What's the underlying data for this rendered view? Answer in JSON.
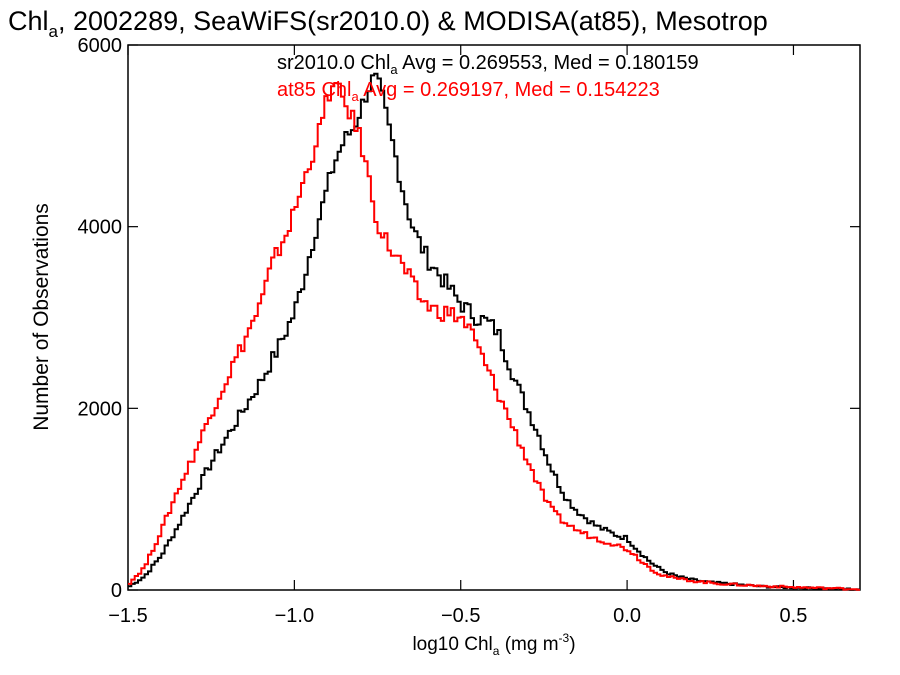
{
  "chart_data": {
    "type": "line",
    "title_parts": {
      "a": "Chl",
      "sub": "a",
      "b": ", 2002289, SeaWiFS(sr2010.0) & MODISA(at85), Mesotrop"
    },
    "xlabel_parts": {
      "a": "log10 Chl",
      "sub": "a",
      "b": " (mg m",
      "sup": "-3",
      "c": ")"
    },
    "ylabel": "Number of Observations",
    "xlim": [
      -1.5,
      0.7
    ],
    "ylim": [
      0,
      6000
    ],
    "x_ticks": [
      {
        "v": -1.5,
        "label": "−1.5"
      },
      {
        "v": -1.0,
        "label": "−1.0"
      },
      {
        "v": -0.5,
        "label": "−0.5"
      },
      {
        "v": 0.0,
        "label": "0.0"
      },
      {
        "v": 0.5,
        "label": "0.5"
      }
    ],
    "y_ticks": [
      {
        "v": 0,
        "label": "0"
      },
      {
        "v": 2000,
        "label": "2000"
      },
      {
        "v": 4000,
        "label": "4000"
      },
      {
        "v": 6000,
        "label": "6000"
      }
    ],
    "series": [
      {
        "color": "#000000",
        "annotation": {
          "a": "sr2010.0 Chl",
          "sub": "a",
          "b": " Avg = 0.269553, Med = 0.180159"
        },
        "points": [
          [
            -1.5,
            30
          ],
          [
            -1.45,
            150
          ],
          [
            -1.4,
            380
          ],
          [
            -1.35,
            700
          ],
          [
            -1.3,
            1050
          ],
          [
            -1.25,
            1400
          ],
          [
            -1.2,
            1700
          ],
          [
            -1.15,
            2000
          ],
          [
            -1.1,
            2300
          ],
          [
            -1.05,
            2650
          ],
          [
            -1.0,
            3050
          ],
          [
            -0.97,
            3450
          ],
          [
            -0.94,
            3900
          ],
          [
            -0.91,
            4300
          ],
          [
            -0.88,
            4700
          ],
          [
            -0.85,
            4950
          ],
          [
            -0.82,
            5100
          ],
          [
            -0.8,
            5300
          ],
          [
            -0.78,
            5500
          ],
          [
            -0.76,
            5650
          ],
          [
            -0.74,
            5500
          ],
          [
            -0.72,
            5150
          ],
          [
            -0.7,
            4850
          ],
          [
            -0.68,
            4500
          ],
          [
            -0.66,
            4200
          ],
          [
            -0.64,
            3950
          ],
          [
            -0.62,
            3800
          ],
          [
            -0.6,
            3650
          ],
          [
            -0.57,
            3500
          ],
          [
            -0.54,
            3350
          ],
          [
            -0.51,
            3200
          ],
          [
            -0.48,
            3080
          ],
          [
            -0.45,
            3000
          ],
          [
            -0.42,
            2950
          ],
          [
            -0.39,
            2850
          ],
          [
            -0.36,
            2550
          ],
          [
            -0.33,
            2250
          ],
          [
            -0.3,
            2000
          ],
          [
            -0.27,
            1750
          ],
          [
            -0.24,
            1450
          ],
          [
            -0.21,
            1200
          ],
          [
            -0.18,
            1000
          ],
          [
            -0.15,
            870
          ],
          [
            -0.12,
            780
          ],
          [
            -0.09,
            700
          ],
          [
            -0.06,
            650
          ],
          [
            -0.03,
            600
          ],
          [
            0.0,
            570
          ],
          [
            0.03,
            450
          ],
          [
            0.06,
            340
          ],
          [
            0.09,
            250
          ],
          [
            0.12,
            190
          ],
          [
            0.15,
            150
          ],
          [
            0.2,
            110
          ],
          [
            0.25,
            85
          ],
          [
            0.3,
            70
          ],
          [
            0.35,
            55
          ],
          [
            0.4,
            40
          ],
          [
            0.45,
            32
          ],
          [
            0.5,
            25
          ],
          [
            0.55,
            20
          ],
          [
            0.6,
            14
          ],
          [
            0.65,
            10
          ],
          [
            0.7,
            8
          ]
        ]
      },
      {
        "color": "#ff0000",
        "annotation": {
          "a": "at85 Chl",
          "sub": "a",
          "b": " Avg = 0.269197, Med = 0.154223"
        },
        "points": [
          [
            -1.5,
            60
          ],
          [
            -1.45,
            250
          ],
          [
            -1.4,
            650
          ],
          [
            -1.35,
            1100
          ],
          [
            -1.3,
            1500
          ],
          [
            -1.25,
            1950
          ],
          [
            -1.2,
            2350
          ],
          [
            -1.15,
            2750
          ],
          [
            -1.1,
            3150
          ],
          [
            -1.07,
            3550
          ],
          [
            -1.04,
            3800
          ],
          [
            -1.01,
            4050
          ],
          [
            -0.98,
            4400
          ],
          [
            -0.95,
            4750
          ],
          [
            -0.92,
            5100
          ],
          [
            -0.9,
            5450
          ],
          [
            -0.88,
            5550
          ],
          [
            -0.86,
            5450
          ],
          [
            -0.84,
            5300
          ],
          [
            -0.82,
            5150
          ],
          [
            -0.8,
            4950
          ],
          [
            -0.78,
            4600
          ],
          [
            -0.76,
            4200
          ],
          [
            -0.74,
            3950
          ],
          [
            -0.71,
            3750
          ],
          [
            -0.68,
            3600
          ],
          [
            -0.65,
            3400
          ],
          [
            -0.62,
            3200
          ],
          [
            -0.58,
            3080
          ],
          [
            -0.54,
            3050
          ],
          [
            -0.5,
            3000
          ],
          [
            -0.47,
            2850
          ],
          [
            -0.44,
            2600
          ],
          [
            -0.41,
            2350
          ],
          [
            -0.38,
            2100
          ],
          [
            -0.35,
            1850
          ],
          [
            -0.32,
            1600
          ],
          [
            -0.29,
            1350
          ],
          [
            -0.26,
            1100
          ],
          [
            -0.23,
            900
          ],
          [
            -0.2,
            780
          ],
          [
            -0.17,
            700
          ],
          [
            -0.14,
            640
          ],
          [
            -0.11,
            590
          ],
          [
            -0.08,
            550
          ],
          [
            -0.05,
            520
          ],
          [
            -0.02,
            480
          ],
          [
            0.01,
            430
          ],
          [
            0.04,
            330
          ],
          [
            0.07,
            240
          ],
          [
            0.1,
            170
          ],
          [
            0.15,
            125
          ],
          [
            0.2,
            100
          ],
          [
            0.25,
            80
          ],
          [
            0.3,
            65
          ],
          [
            0.35,
            55
          ],
          [
            0.4,
            45
          ],
          [
            0.45,
            38
          ],
          [
            0.5,
            30
          ],
          [
            0.55,
            25
          ],
          [
            0.6,
            20
          ],
          [
            0.65,
            15
          ],
          [
            0.7,
            10
          ]
        ]
      }
    ],
    "grid": false
  }
}
